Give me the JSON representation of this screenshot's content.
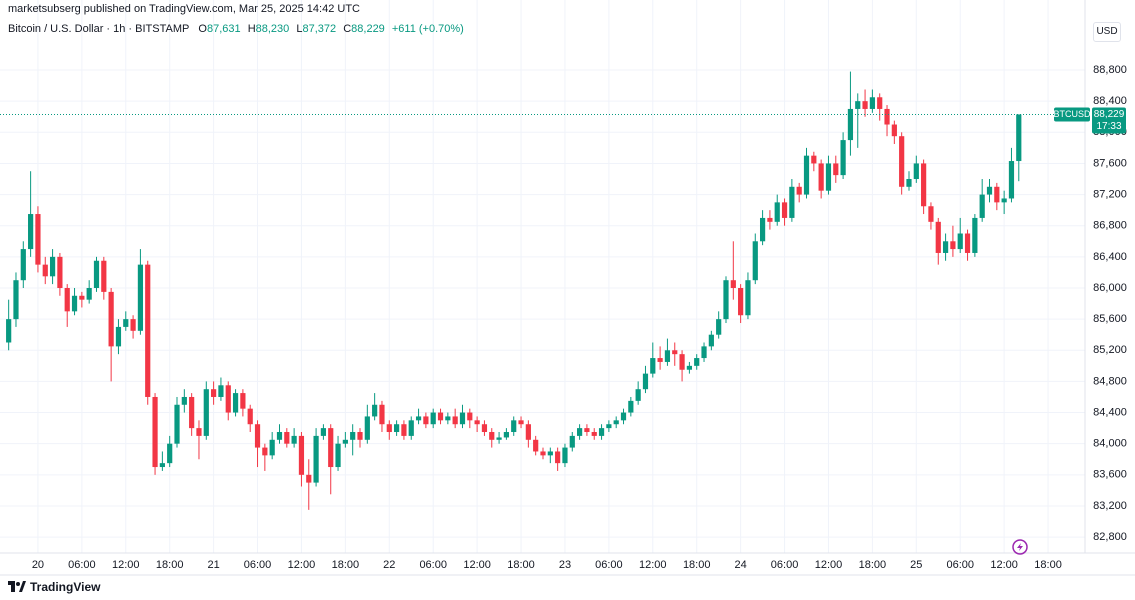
{
  "header": {
    "publisher": "marketsubserg published on TradingView.com, Mar 25, 2025 14:42 UTC",
    "symbol": "Bitcoin / U.S. Dollar · 1h · BITSTAMP",
    "ohlc": [
      {
        "key": "O",
        "value": "87,631"
      },
      {
        "key": "H",
        "value": "88,230"
      },
      {
        "key": "L",
        "value": "87,372"
      },
      {
        "key": "C",
        "value": "88,229"
      }
    ],
    "change": "+611 (+0.70%)"
  },
  "currency": "USD",
  "brand": "TradingView",
  "chart_data": {
    "type": "candlestick",
    "up_color": "#089981",
    "down_color": "#f23645",
    "grid": true,
    "categories": [
      null,
      null,
      null,
      null,
      "20",
      null,
      null,
      null,
      null,
      null,
      "06:00",
      null,
      null,
      null,
      null,
      null,
      "12:00",
      null,
      null,
      null,
      null,
      null,
      "18:00",
      null,
      null,
      null,
      null,
      null,
      "21",
      null,
      null,
      null,
      null,
      null,
      "06:00",
      null,
      null,
      null,
      null,
      null,
      "12:00",
      null,
      null,
      null,
      null,
      null,
      "18:00",
      null,
      null,
      null,
      null,
      null,
      "22",
      null,
      null,
      null,
      null,
      null,
      "06:00",
      null,
      null,
      null,
      null,
      null,
      "12:00",
      null,
      null,
      null,
      null,
      null,
      "18:00",
      null,
      null,
      null,
      null,
      null,
      "23",
      null,
      null,
      null,
      null,
      null,
      "06:00",
      null,
      null,
      null,
      null,
      null,
      "12:00",
      null,
      null,
      null,
      null,
      null,
      "18:00",
      null,
      null,
      null,
      null,
      null,
      "24",
      null,
      null,
      null,
      null,
      null,
      "06:00",
      null,
      null,
      null,
      null,
      null,
      "12:00",
      null,
      null,
      null,
      null,
      null,
      "18:00",
      null,
      null,
      null,
      null,
      null,
      "25",
      null,
      null,
      null,
      null,
      null,
      "06:00",
      null,
      null,
      null,
      null,
      null,
      "12:00",
      null,
      null,
      null,
      null,
      null,
      "18:00",
      null,
      null,
      null,
      null
    ],
    "open": [
      85300,
      85600,
      86100,
      86500,
      86950,
      86300,
      86150,
      86400,
      86000,
      85700,
      85900,
      85850,
      86000,
      86350,
      85950,
      85250,
      85500,
      85600,
      85450,
      86300,
      84600,
      83700,
      83750,
      84000,
      84500,
      84600,
      84200,
      84100,
      84700,
      84600,
      84750,
      84400,
      84650,
      84450,
      84250,
      83950,
      83850,
      84050,
      84150,
      84000,
      84100,
      83600,
      83500,
      84100,
      84200,
      83700,
      84000,
      84050,
      84150,
      84050,
      84350,
      84500,
      84250,
      84150,
      84250,
      84100,
      84300,
      84350,
      84250,
      84400,
      84300,
      84350,
      84250,
      84400,
      84300,
      84250,
      84150,
      84050,
      84080,
      84150,
      84300,
      84250,
      84050,
      83900,
      83850,
      83900,
      83750,
      83950,
      84100,
      84200,
      84150,
      84100,
      84200,
      84250,
      84300,
      84400,
      84550,
      84700,
      84900,
      85100,
      85050,
      85200,
      85150,
      84950,
      85000,
      85100,
      85250,
      85400,
      85600,
      86100,
      86000,
      85650,
      86100,
      86600,
      86900,
      86850,
      87100,
      86900,
      87300,
      87200,
      87700,
      87600,
      87250,
      87600,
      87450,
      87900,
      88300,
      88400,
      88300,
      88450,
      88300,
      88100,
      87950,
      87300,
      87400,
      87600,
      87050,
      86850,
      86450,
      86600,
      86500,
      86700,
      86450,
      86900,
      87200,
      87300,
      87100,
      87150,
      87631,
      null,
      null,
      null,
      null,
      null,
      null,
      null,
      null
    ],
    "high": [
      85850,
      86200,
      86600,
      87500,
      87050,
      86400,
      86500,
      86450,
      86050,
      86000,
      85950,
      86100,
      86400,
      86400,
      86000,
      85600,
      85700,
      85650,
      86500,
      86350,
      84650,
      83900,
      84100,
      84600,
      84700,
      84650,
      84300,
      84800,
      84800,
      84850,
      84800,
      84700,
      84700,
      84500,
      84300,
      84000,
      84150,
      84250,
      84200,
      84200,
      84150,
      83800,
      84200,
      84250,
      84250,
      84100,
      84150,
      84250,
      84200,
      84500,
      84650,
      84550,
      84300,
      84300,
      84300,
      84350,
      84450,
      84400,
      84450,
      84450,
      84400,
      84450,
      84500,
      84450,
      84350,
      84300,
      84200,
      84150,
      84200,
      84350,
      84350,
      84300,
      84100,
      83950,
      83950,
      83950,
      84000,
      84150,
      84250,
      84250,
      84200,
      84250,
      84300,
      84350,
      84450,
      84600,
      84800,
      85000,
      85300,
      85250,
      85350,
      85300,
      85200,
      85050,
      85150,
      85300,
      85450,
      85700,
      86150,
      86600,
      86050,
      86200,
      86700,
      87000,
      87000,
      87200,
      87150,
      87400,
      87350,
      87800,
      87750,
      87650,
      87700,
      87700,
      88000,
      88780,
      88500,
      88550,
      88550,
      88500,
      88350,
      88150,
      88000,
      87500,
      87700,
      87650,
      87100,
      86900,
      86700,
      86800,
      86900,
      86750,
      86950,
      87400,
      87400,
      87350,
      87250,
      87800,
      88230,
      null,
      null,
      null,
      null,
      null,
      null,
      null,
      null
    ],
    "low": [
      85200,
      85500,
      86000,
      86400,
      86200,
      86050,
      86050,
      85900,
      85500,
      85650,
      85750,
      85800,
      85950,
      85850,
      84800,
      85150,
      85450,
      85350,
      85400,
      84500,
      83600,
      83650,
      83700,
      83950,
      84400,
      84100,
      83800,
      84050,
      84500,
      84550,
      84300,
      84350,
      84350,
      84150,
      83700,
      83650,
      83800,
      84000,
      83950,
      83950,
      83450,
      83150,
      83450,
      84050,
      83350,
      83650,
      83950,
      83850,
      83950,
      84000,
      84300,
      84150,
      84050,
      84100,
      84050,
      84050,
      84250,
      84200,
      84200,
      84250,
      84250,
      84200,
      84200,
      84200,
      84150,
      84100,
      83950,
      84000,
      84050,
      84100,
      84200,
      83950,
      83850,
      83800,
      83750,
      83650,
      83700,
      83900,
      84050,
      84100,
      84050,
      84050,
      84150,
      84200,
      84250,
      84350,
      84500,
      84650,
      84850,
      84950,
      85000,
      85000,
      84800,
      84900,
      84950,
      85050,
      85200,
      85350,
      85550,
      85850,
      85550,
      85600,
      86050,
      86550,
      86750,
      86800,
      86800,
      86850,
      87100,
      87150,
      87500,
      87150,
      87200,
      87350,
      87400,
      87700,
      87800,
      88200,
      88250,
      88150,
      87950,
      87850,
      87200,
      87250,
      87350,
      86950,
      86750,
      86300,
      86350,
      86400,
      86450,
      86350,
      86400,
      86850,
      87100,
      87000,
      86950,
      87100,
      87372,
      null,
      null,
      null,
      null,
      null,
      null,
      null,
      null
    ],
    "close": [
      85600,
      86100,
      86500,
      86950,
      86300,
      86150,
      86400,
      86000,
      85700,
      85900,
      85850,
      86000,
      86350,
      85950,
      85250,
      85500,
      85600,
      85450,
      86300,
      84600,
      83700,
      83750,
      84000,
      84500,
      84600,
      84200,
      84100,
      84700,
      84600,
      84750,
      84400,
      84650,
      84450,
      84250,
      83950,
      83850,
      84050,
      84150,
      84000,
      84100,
      83600,
      83500,
      84100,
      84200,
      83700,
      84000,
      84050,
      84150,
      84050,
      84350,
      84500,
      84250,
      84150,
      84250,
      84100,
      84300,
      84350,
      84250,
      84400,
      84300,
      84350,
      84250,
      84400,
      84300,
      84250,
      84150,
      84050,
      84080,
      84150,
      84300,
      84250,
      84050,
      83900,
      83850,
      83900,
      83750,
      83950,
      84100,
      84200,
      84150,
      84100,
      84200,
      84250,
      84300,
      84400,
      84550,
      84700,
      84900,
      85100,
      85050,
      85200,
      85150,
      84950,
      85000,
      85100,
      85250,
      85400,
      85600,
      86100,
      86000,
      85650,
      86100,
      86600,
      86900,
      86850,
      87100,
      86900,
      87300,
      87200,
      87700,
      87600,
      87250,
      87600,
      87450,
      87900,
      88300,
      88400,
      88300,
      88450,
      88300,
      88100,
      87950,
      87300,
      87400,
      87600,
      87050,
      86850,
      86450,
      86600,
      86500,
      86700,
      86450,
      86900,
      87200,
      87300,
      87100,
      87150,
      87631,
      88229,
      null,
      null,
      null,
      null,
      null,
      null,
      null,
      null
    ],
    "ylim": [
      82660,
      89160
    ],
    "yticks": [
      {
        "value": 82800,
        "label": "82,800"
      },
      {
        "value": 83200,
        "label": "83,200"
      },
      {
        "value": 83600,
        "label": "83,600"
      },
      {
        "value": 84000,
        "label": "84,000"
      },
      {
        "value": 84400,
        "label": "84,400"
      },
      {
        "value": 84800,
        "label": "84,800"
      },
      {
        "value": 85200,
        "label": "85,200"
      },
      {
        "value": 85600,
        "label": "85,600"
      },
      {
        "value": 86000,
        "label": "86,000"
      },
      {
        "value": 86400,
        "label": "86,400"
      },
      {
        "value": 86800,
        "label": "86,800"
      },
      {
        "value": 87200,
        "label": "87,200"
      },
      {
        "value": 87600,
        "label": "87,600"
      },
      {
        "value": 88000,
        "label": "88,000"
      },
      {
        "value": 88400,
        "label": "88,400"
      },
      {
        "value": 88800,
        "label": "88,800"
      }
    ],
    "last_price": {
      "value": 88229,
      "label": "88,229"
    },
    "symbol_tag": "BTCUSD",
    "countdown": "17:33"
  }
}
